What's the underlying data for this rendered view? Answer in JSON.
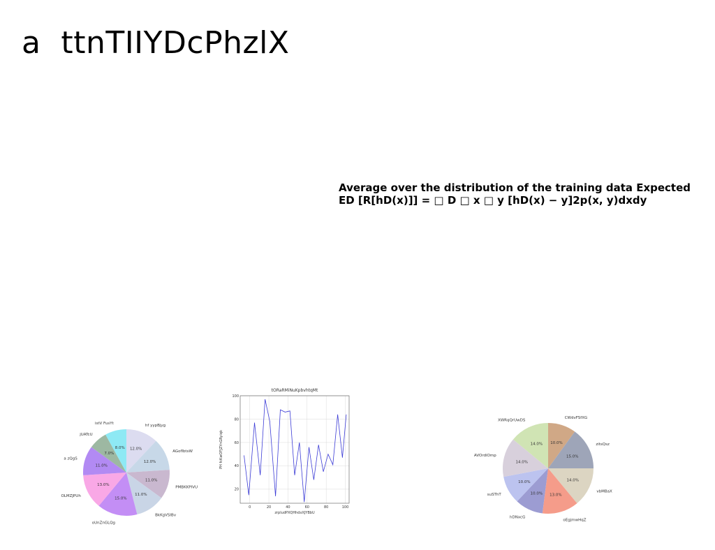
{
  "document": {
    "title": "a  ttnTIIYDcPhzlX",
    "formula_lines": [
      "Average over the distribution of the training data Expected",
      "ED [R[hD(x)]] = □ D □ x □ y [hD(x) − y]2p(x, y)dxdy"
    ]
  },
  "chart_data": [
    {
      "type": "pie",
      "title": "",
      "start_angle_deg": 90,
      "direction": "clockwise",
      "slices": [
        {
          "label": "hf yypBjyg",
          "value": 12.0,
          "color": "#dcdcf0"
        },
        {
          "label": "AGoflbtsW",
          "value": 12.0,
          "color": "#c7d8e8"
        },
        {
          "label": "PMBKKPIVU",
          "value": 11.0,
          "color": "#c9b8cf"
        },
        {
          "label": "BkKgVSIBv",
          "value": 11.0,
          "color": "#c9d5e6"
        },
        {
          "label": "oUnZnGLQg",
          "value": 15.0,
          "color": "#c38ef5"
        },
        {
          "label": "OLMZJPUh",
          "value": 13.0,
          "color": "#f9a8e6"
        },
        {
          "label": "a zQgS",
          "value": 11.0,
          "color": "#b28af3"
        },
        {
          "label": "jUATcU",
          "value": 7.0,
          "color": "#9db8a2"
        },
        {
          "label": "istV FusYt",
          "value": 8.0,
          "color": "#8ee9f4"
        }
      ]
    },
    {
      "type": "line",
      "title": "tORaRMiNuKpbvhtqMt",
      "xlabel": "zrpludPXQHhdxXJYBbU",
      "ylabel": "PH fcKwOFJZYnGRyiqk",
      "xlim": [
        -10,
        104
      ],
      "ylim": [
        8,
        100
      ],
      "xticks": [
        0,
        20,
        40,
        60,
        80,
        100
      ],
      "yticks": [
        20,
        40,
        60,
        80,
        100
      ],
      "grid": true,
      "line_color": "#3b3bd6",
      "x": [
        -6,
        -1,
        5,
        11,
        16,
        21,
        27,
        32,
        37,
        42,
        47,
        52,
        57,
        62,
        67,
        72,
        77,
        82,
        87,
        92,
        97,
        101
      ],
      "y": [
        49,
        15,
        77,
        32,
        97,
        78,
        14,
        88,
        86,
        87,
        32,
        60,
        9,
        56,
        28,
        58,
        35,
        50,
        41,
        84,
        47,
        84
      ]
    },
    {
      "type": "pie",
      "title": "",
      "start_angle_deg": 90,
      "direction": "clockwise",
      "slices": [
        {
          "label": "CWdvFSfXG",
          "value": 10.0,
          "color": "#d0a886"
        },
        {
          "label": "zitsQsz",
          "value": 15.0,
          "color": "#9ea5b8"
        },
        {
          "label": "vbMBaX",
          "value": 14.0,
          "color": "#dcd5c2"
        },
        {
          "label": "oEgjmwHqZ",
          "value": 13.0,
          "color": "#f59c8a"
        },
        {
          "label": "hDNxcG",
          "value": 10.0,
          "color": "#9c9cd2"
        },
        {
          "label": "suSThT",
          "value": 10.0,
          "color": "#bcc3ef"
        },
        {
          "label": "AVOrdiOmp",
          "value": 14.0,
          "color": "#d8d0dc"
        },
        {
          "label": "XWRqQrUwDS",
          "value": 14.0,
          "color": "#d0e4b4"
        }
      ]
    }
  ]
}
